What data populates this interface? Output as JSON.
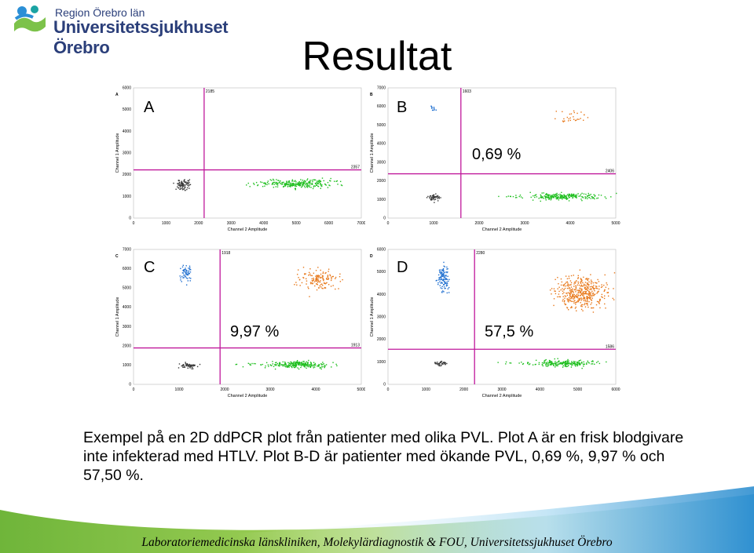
{
  "header": {
    "region": "Region Örebro län",
    "hospital": "Universitetssjukhuset Örebro"
  },
  "title": "Resultat",
  "plots": [
    {
      "id": "A",
      "label": "A",
      "percent": "",
      "x_ticks": [
        "0",
        "1000",
        "2000",
        "3000",
        "4000",
        "5000",
        "6000",
        "7000"
      ],
      "y_ticks": [
        "0",
        "1000",
        "2000",
        "3000",
        "4000",
        "5000",
        "6000"
      ],
      "xlabel": "Channel 2 Amplitude",
      "ylabel": "Channel 1 Amplitude",
      "corner_letter": "A",
      "threshold_x_label": "2185",
      "threshold_y_label": "2357",
      "clusters": {
        "black": true,
        "blue": false,
        "orange": false,
        "green": true
      }
    },
    {
      "id": "B",
      "label": "B",
      "percent": "0,69 %",
      "x_ticks": [
        "0",
        "1000",
        "2000",
        "3000",
        "4000",
        "5000"
      ],
      "y_ticks": [
        "0",
        "1000",
        "2000",
        "3000",
        "4000",
        "5000",
        "6000",
        "7000"
      ],
      "xlabel": "Channel 2 Amplitude",
      "ylabel": "Channel 1 Amplitude",
      "corner_letter": "B",
      "threshold_x_label": "1603",
      "threshold_y_label": "2406",
      "clusters": {
        "black": true,
        "blue": true,
        "orange": true,
        "green": true
      }
    },
    {
      "id": "C",
      "label": "C",
      "percent": "9,97 %",
      "x_ticks": [
        "0",
        "1000",
        "2000",
        "3000",
        "4000",
        "5000"
      ],
      "y_ticks": [
        "0",
        "1000",
        "2000",
        "3000",
        "4000",
        "5000",
        "6000",
        "7000"
      ],
      "xlabel": "Channel 2 Amplitude",
      "ylabel": "Channel 1 Amplitude",
      "corner_letter": "C",
      "threshold_x_label": "1918",
      "threshold_y_label": "1913",
      "clusters": {
        "black": true,
        "blue": true,
        "orange": true,
        "green": true
      }
    },
    {
      "id": "D",
      "label": "D",
      "percent": "57,5 %",
      "x_ticks": [
        "0",
        "1000",
        "2000",
        "3000",
        "4000",
        "5000",
        "6000"
      ],
      "y_ticks": [
        "0",
        "1000",
        "2000",
        "3000",
        "4000",
        "5000",
        "6000"
      ],
      "xlabel": "Channel 2 Amplitude",
      "ylabel": "Channel 1 Amplitude",
      "corner_letter": "D",
      "threshold_x_label": "2280",
      "threshold_y_label": "1586",
      "clusters": {
        "black": true,
        "blue": true,
        "orange": true,
        "green": true
      }
    }
  ],
  "caption": "Exempel på en 2D ddPCR plot från patienter med olika PVL. Plot A är en frisk blodgivare inte infekterad med HTLV. Plot B-D är patienter med ökande PVL, 0,69 %, 9,97 % och 57,50 %.",
  "footer": "Laboratoriemedicinska länskliniken, Molekylärdiagnostik & FOU, Universitetssjukhuset Örebro",
  "colors": {
    "threshold": "#c0189b",
    "black_cluster": "#3a3a3a",
    "green_cluster": "#1fbf1f",
    "blue_cluster": "#1f6fd0",
    "orange_cluster": "#e8781a",
    "brand": "#2b3f7a",
    "footer_band": "#8cc63e"
  }
}
